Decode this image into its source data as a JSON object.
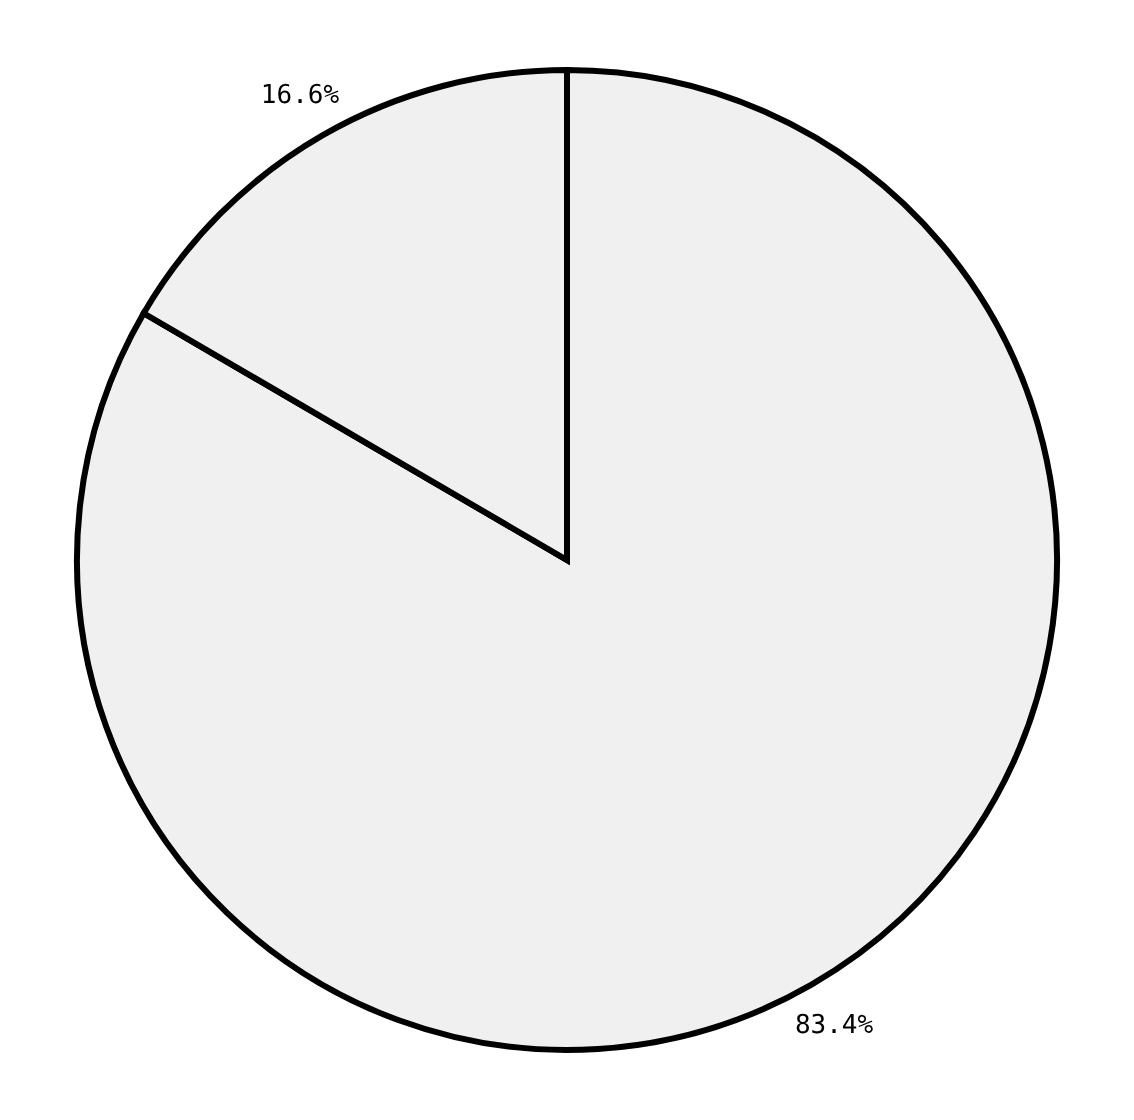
{
  "chart_data": {
    "type": "pie",
    "categories": [
      null,
      null
    ],
    "values": [
      83.4,
      16.6
    ],
    "colors": [
      "#f0f0f0",
      "#f0f0f0"
    ],
    "value_labels": [
      "83.4%",
      "16.6%"
    ],
    "legend": false
  }
}
